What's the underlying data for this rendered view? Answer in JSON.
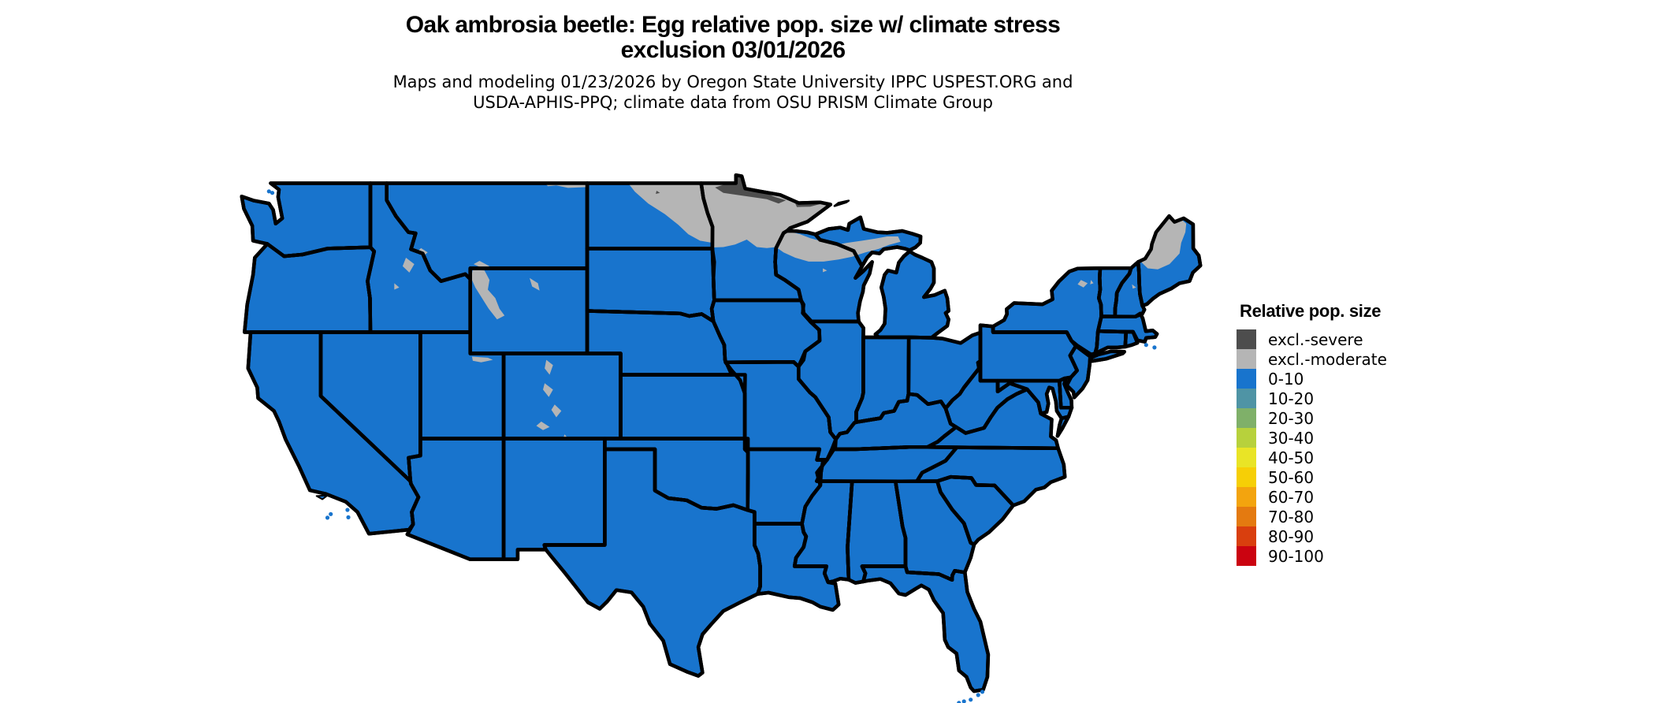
{
  "header": {
    "title_line1": "Oak ambrosia beetle: Egg relative pop. size w/ climate stress",
    "title_line2": "exclusion 03/01/2026",
    "subtitle_line1": "Maps and modeling 01/23/2026 by Oregon State University IPPC USPEST.ORG and",
    "subtitle_line2": "USDA-APHIS-PPQ; climate data from OSU PRISM Climate Group"
  },
  "legend": {
    "title": "Relative pop. size",
    "items": [
      {
        "key": "excl_severe",
        "label": "excl.-severe",
        "color": "#4d4d4d"
      },
      {
        "key": "excl_moderate",
        "label": "excl.-moderate",
        "color": "#b5b5b5"
      },
      {
        "key": "r0_10",
        "label": "0-10",
        "color": "#1874cd"
      },
      {
        "key": "r10_20",
        "label": "10-20",
        "color": "#4f94a5"
      },
      {
        "key": "r20_30",
        "label": "20-30",
        "color": "#7fb069"
      },
      {
        "key": "r30_40",
        "label": "30-40",
        "color": "#b7d13c"
      },
      {
        "key": "r40_50",
        "label": "40-50",
        "color": "#e9e426"
      },
      {
        "key": "r50_60",
        "label": "50-60",
        "color": "#f6cf06"
      },
      {
        "key": "r60_70",
        "label": "60-70",
        "color": "#f3a40e"
      },
      {
        "key": "r70_80",
        "label": "70-80",
        "color": "#e47a10"
      },
      {
        "key": "r80_90",
        "label": "80-90",
        "color": "#d93f0e"
      },
      {
        "key": "r90_100",
        "label": "90-100",
        "color": "#cb0310"
      }
    ]
  },
  "map": {
    "base_category": "r0_10",
    "border_color": "#000000",
    "water_color": "#ffffff",
    "exclusion_moderate_regions": [
      "northeastern North Dakota",
      "northern Minnesota",
      "northern Wisconsin",
      "western Upper Peninsula of Michigan",
      "northern Maine",
      "high Rockies of Wyoming, Colorado, Utah, Idaho and Montana",
      "Adirondack Mountains of New York",
      "White Mountains of New Hampshire"
    ],
    "exclusion_severe_regions": [
      "far northern Minnesota along the Canadian border",
      "small spots in northeastern North Dakota"
    ]
  }
}
